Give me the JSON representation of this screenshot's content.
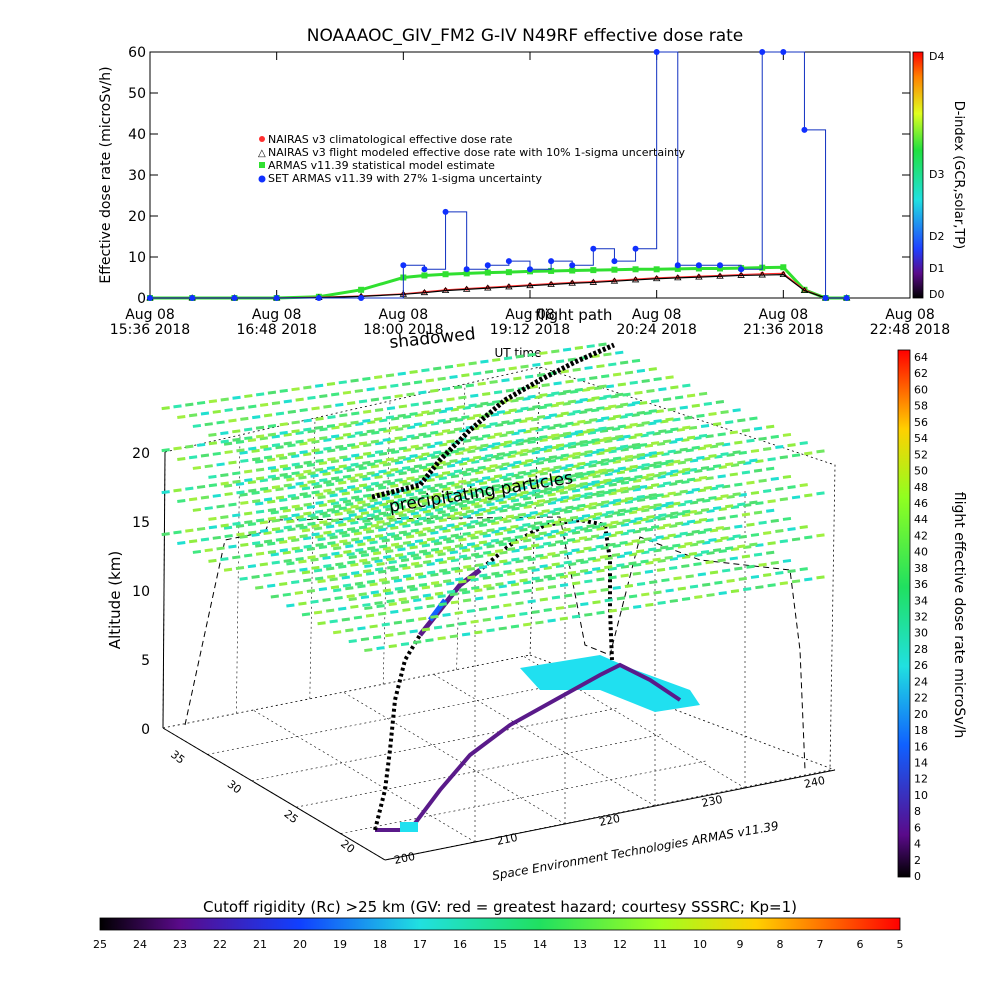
{
  "top_chart": {
    "title": "NOAAAOC_GIV_FM2 G-IV   N49RF  effective dose rate",
    "ylabel": "Effective dose rate (microSv/h)",
    "y_ticks": [
      "0",
      "10",
      "20",
      "30",
      "40",
      "50",
      "60"
    ],
    "x_ticks": [
      {
        "l1": "Aug 08",
        "l2": "15:36 2018"
      },
      {
        "l1": "Aug 08",
        "l2": "16:48 2018"
      },
      {
        "l1": "Aug 08",
        "l2": "18:00 2018"
      },
      {
        "l1": "Aug 08",
        "l2": "19:12 2018"
      },
      {
        "l1": "Aug 08",
        "l2": "20:24 2018"
      },
      {
        "l1": "Aug 08",
        "l2": "21:36 2018"
      },
      {
        "l1": "Aug 08",
        "l2": "22:48 2018"
      }
    ],
    "xlabel": "UT time",
    "overlay_labels": [
      "flight path",
      "shadowed"
    ],
    "legend": [
      "NAIRAS v3 climatological effective dose rate",
      "NAIRAS v3 flight modeled effective dose rate with 10% 1-sigma uncertainty",
      "ARMAS v11.39 statistical model estimate",
      "SET ARMAS v11.39 with 27% 1-sigma uncertainty"
    ],
    "right_axis_label": "D-index (GCR,solar,TP)",
    "right_axis_ticks": [
      "D4",
      "D3",
      "D2",
      "D1",
      "D0"
    ]
  },
  "chart_data": {
    "type": "line",
    "title": "NOAAAOC_GIV_FM2 G-IV   N49RF  effective dose rate",
    "xlabel": "UT time",
    "ylabel": "Effective dose rate (microSv/h)",
    "xlim": [
      "15:36",
      "22:48"
    ],
    "ylim": [
      0,
      60
    ],
    "x": [
      "15:36",
      "16:00",
      "16:24",
      "16:48",
      "17:12",
      "17:36",
      "18:00",
      "18:12",
      "18:24",
      "18:36",
      "18:48",
      "19:00",
      "19:12",
      "19:24",
      "19:36",
      "19:48",
      "20:00",
      "20:12",
      "20:24",
      "20:36",
      "20:48",
      "21:00",
      "21:12",
      "21:24",
      "21:36",
      "21:48",
      "22:00",
      "22:12"
    ],
    "series": [
      {
        "name": "NAIRAS v3 climatological effective dose rate",
        "values": [
          0,
          0,
          0,
          0,
          0.2,
          0.5,
          1.0,
          1.5,
          2.0,
          2.3,
          2.6,
          2.9,
          3.2,
          3.5,
          3.8,
          4.0,
          4.3,
          4.6,
          4.9,
          5.1,
          5.3,
          5.5,
          5.7,
          5.9,
          6.0,
          2.0,
          0,
          0
        ]
      },
      {
        "name": "NAIRAS v3 flight modeled effective dose rate with 10% 1-sigma uncertainty",
        "values": [
          0,
          0,
          0,
          0,
          0.1,
          0.4,
          0.9,
          1.3,
          1.8,
          2.1,
          2.4,
          2.7,
          3.0,
          3.3,
          3.6,
          3.8,
          4.1,
          4.4,
          4.7,
          4.9,
          5.1,
          5.3,
          5.5,
          5.6,
          5.7,
          1.8,
          0,
          0
        ]
      },
      {
        "name": "ARMAS v11.39 statistical model estimate",
        "values": [
          0,
          0,
          0,
          0,
          0.3,
          2.0,
          5.0,
          5.5,
          5.8,
          6.0,
          6.2,
          6.3,
          6.5,
          6.6,
          6.7,
          6.8,
          6.9,
          7.0,
          7.0,
          7.1,
          7.2,
          7.2,
          7.3,
          7.4,
          7.5,
          2.0,
          0,
          0
        ]
      },
      {
        "name": "SET ARMAS v11.39 with 27% 1-sigma uncertainty",
        "values": [
          0,
          0,
          0,
          0,
          0,
          0,
          8,
          7,
          21,
          7,
          8,
          9,
          7,
          9,
          8,
          12,
          9,
          12,
          60,
          8,
          8,
          8,
          7,
          60,
          60,
          41,
          0,
          0
        ]
      }
    ]
  },
  "map3d": {
    "zlabel": "Altitude (km)",
    "z_ticks": [
      "0",
      "5",
      "10",
      "15",
      "20"
    ],
    "lat_ticks": [
      "20",
      "25",
      "30",
      "35"
    ],
    "lon_ticks": [
      "200",
      "210",
      "220",
      "230",
      "240"
    ],
    "annotation": "precipitating particles",
    "credit": "Space Environment Technologies ARMAS v11.39",
    "colorbar_label": "flight effective dose rate microSv/h",
    "colorbar_ticks": [
      "64",
      "62",
      "60",
      "58",
      "56",
      "54",
      "52",
      "50",
      "48",
      "46",
      "44",
      "42",
      "40",
      "38",
      "36",
      "34",
      "32",
      "30",
      "28",
      "26",
      "24",
      "22",
      "20",
      "18",
      "16",
      "14",
      "12",
      "10",
      "8",
      "6",
      "4",
      "2",
      "0"
    ]
  },
  "bottom_bar": {
    "label": "Cutoff rigidity (Rc) >25 km (GV: red = greatest hazard; courtesy SSSRC; Kp=1)",
    "ticks": [
      "25",
      "24",
      "23",
      "22",
      "21",
      "20",
      "19",
      "18",
      "17",
      "16",
      "15",
      "14",
      "13",
      "12",
      "11",
      "10",
      "9",
      "8",
      "7",
      "6",
      "5"
    ]
  }
}
